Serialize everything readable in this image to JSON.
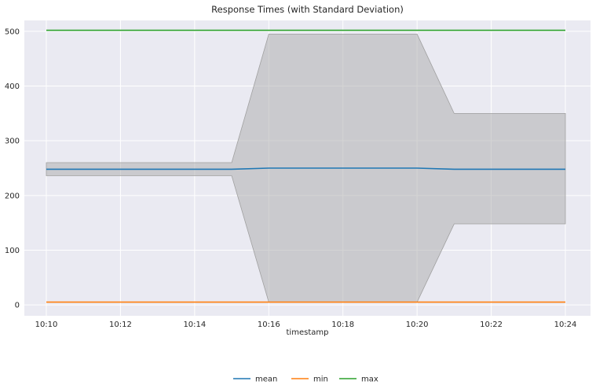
{
  "chart_data": {
    "type": "line",
    "title": "Response Times (with Standard Deviation)",
    "xlabel": "timestamp",
    "ylabel": "",
    "x": [
      "10:10",
      "10:11",
      "10:12",
      "10:13",
      "10:14",
      "10:15",
      "10:16",
      "10:17",
      "10:18",
      "10:19",
      "10:20",
      "10:21",
      "10:22",
      "10:23",
      "10:24"
    ],
    "x_ticks": [
      "10:10",
      "10:12",
      "10:14",
      "10:16",
      "10:18",
      "10:20",
      "10:22",
      "10:24"
    ],
    "ylim": [
      -20,
      520
    ],
    "y_ticks": [
      0,
      100,
      200,
      300,
      400,
      500
    ],
    "series": [
      {
        "name": "mean",
        "color": "#1f77b4",
        "values": [
          248,
          248,
          248,
          248,
          248,
          248,
          250,
          250,
          250,
          250,
          250,
          248,
          248,
          248,
          248
        ]
      },
      {
        "name": "min",
        "color": "#ff7f0e",
        "values": [
          5,
          5,
          5,
          5,
          5,
          5,
          5,
          5,
          5,
          5,
          5,
          5,
          5,
          5,
          5
        ]
      },
      {
        "name": "max",
        "color": "#2ca02c",
        "values": [
          502,
          502,
          502,
          502,
          502,
          502,
          502,
          502,
          502,
          502,
          502,
          502,
          502,
          502,
          502
        ]
      }
    ],
    "std_band": {
      "color": "#a9a9a9",
      "lower": [
        236,
        236,
        236,
        236,
        236,
        236,
        5,
        5,
        5,
        5,
        5,
        148,
        148,
        148,
        148
      ],
      "upper": [
        260,
        260,
        260,
        260,
        260,
        260,
        495,
        495,
        495,
        495,
        495,
        350,
        350,
        350,
        350
      ]
    },
    "grid": true,
    "legend_position": "bottom-center",
    "background_color": "#eaeaf2"
  }
}
